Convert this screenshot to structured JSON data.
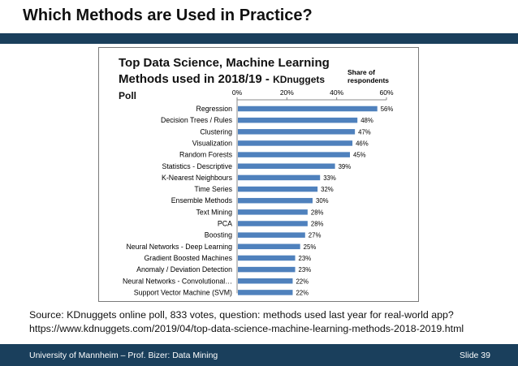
{
  "slide": {
    "title": "Which Methods are Used in Practice?"
  },
  "chart_data": {
    "type": "bar",
    "orientation": "horizontal",
    "title_line1": "Top Data Science, Machine Learning",
    "title_line2": "Methods used in 2018/19 - ",
    "title_line2_suffix": "KDnuggets Poll",
    "legend_note": "Share of respondents",
    "xlim": [
      0,
      60
    ],
    "xticks": [
      "0%",
      "20%",
      "40%",
      "60%"
    ],
    "xtick_values": [
      0,
      20,
      40,
      60
    ],
    "grid": false,
    "bar_color": "#4f81bd",
    "categories": [
      "Regression",
      "Decision Trees / Rules",
      "Clustering",
      "Visualization",
      "Random Forests",
      "Statistics - Descriptive",
      "K-Nearest Neighbours",
      "Time Series",
      "Ensemble Methods",
      "Text Mining",
      "PCA",
      "Boosting",
      "Neural Networks - Deep Learning",
      "Gradient Boosted Machines",
      "Anomaly / Deviation Detection",
      "Neural Networks - Convolutional…",
      "Support Vector Machine (SVM)"
    ],
    "values": [
      56,
      48,
      47,
      46,
      45,
      39,
      33,
      32,
      30,
      28,
      28,
      27,
      25,
      23,
      23,
      22,
      22
    ],
    "value_labels": [
      "56%",
      "48%",
      "47%",
      "46%",
      "45%",
      "39%",
      "33%",
      "32%",
      "30%",
      "28%",
      "28%",
      "27%",
      "25%",
      "23%",
      "23%",
      "22%",
      "22%"
    ]
  },
  "caption": {
    "line1": "Source: KDnuggets online poll, 833 votes, question: methods used last year for real-world app?",
    "line2": "https://www.kdnuggets.com/2019/04/top-data-science-machine-learning-methods-2018-2019.html"
  },
  "footer": {
    "left": "University of Mannheim – Prof. Bizer: Data Mining",
    "right": "Slide 39"
  },
  "colors": {
    "header_bar": "#1a3f5c",
    "bar": "#4f81bd"
  }
}
